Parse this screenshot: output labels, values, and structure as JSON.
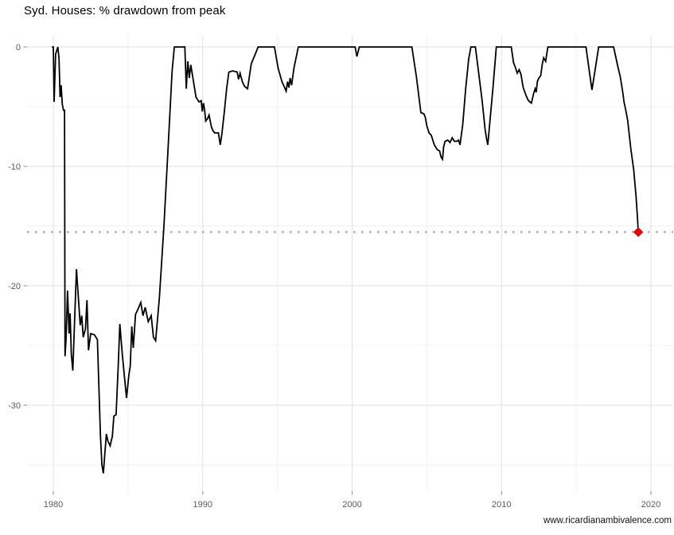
{
  "page": {
    "title": "Syd. Houses: % drawdown from peak",
    "watermark": "www.ricardianambivalence.com"
  },
  "chart_data": {
    "type": "line",
    "title": "Syd. Houses: % drawdown from peak",
    "caption": "www.ricardianambivalence.com",
    "xlabel": "",
    "ylabel": "",
    "legend": "none",
    "grid": {
      "on": true,
      "major_color": "#e3e3e3",
      "minor_color": "#f0f0f0"
    },
    "tick_label_color": "#5a5a5a",
    "tick_mark_color": "#8c8c8c",
    "x_axis": {
      "lim": [
        1978.24,
        2021.49
      ],
      "ticks": [
        {
          "v": 1980,
          "label": "1980"
        },
        {
          "v": 1990,
          "label": "1990"
        },
        {
          "v": 2000,
          "label": "2000"
        },
        {
          "v": 2010,
          "label": "2010"
        },
        {
          "v": 2020,
          "label": "2020"
        }
      ],
      "minor": [
        1985,
        1995,
        2005,
        2015
      ]
    },
    "y_axis": {
      "lim": [
        -37.2,
        0.93
      ],
      "ticks": [
        {
          "v": 0,
          "label": "0"
        },
        {
          "v": -10,
          "label": "-10"
        },
        {
          "v": -20,
          "label": "-20"
        },
        {
          "v": -30,
          "label": "-30"
        }
      ],
      "minor": [
        -5,
        -15,
        -25,
        -35
      ]
    },
    "ref_line": {
      "y": -15.5,
      "style": "dotted",
      "color": "#b3b3b3"
    },
    "marker": {
      "x": 2019.15,
      "y": -15.5,
      "shape": "diamond",
      "color": "#ee0000"
    },
    "series": [
      {
        "name": "Sydney houses % drawdown from peak",
        "color": "#000000",
        "points": [
          [
            1979.9,
            0
          ],
          [
            1980.0,
            0
          ],
          [
            1980.05,
            -4.6
          ],
          [
            1980.15,
            -0.6
          ],
          [
            1980.3,
            0
          ],
          [
            1980.38,
            -1.0
          ],
          [
            1980.45,
            -4.2
          ],
          [
            1980.52,
            -3.2
          ],
          [
            1980.6,
            -4.8
          ],
          [
            1980.68,
            -5.3
          ],
          [
            1980.75,
            -5.3
          ],
          [
            1980.78,
            -25.9
          ],
          [
            1980.85,
            -24.5
          ],
          [
            1980.95,
            -20.4
          ],
          [
            1981.05,
            -24.0
          ],
          [
            1981.12,
            -22.3
          ],
          [
            1981.2,
            -25.7
          ],
          [
            1981.3,
            -27.1
          ],
          [
            1981.45,
            -21.9
          ],
          [
            1981.55,
            -18.6
          ],
          [
            1981.65,
            -20.5
          ],
          [
            1981.8,
            -23.3
          ],
          [
            1981.9,
            -22.5
          ],
          [
            1982.0,
            -24.3
          ],
          [
            1982.15,
            -23.6
          ],
          [
            1982.25,
            -21.2
          ],
          [
            1982.35,
            -25.4
          ],
          [
            1982.5,
            -24.0
          ],
          [
            1982.75,
            -24.1
          ],
          [
            1982.95,
            -24.5
          ],
          [
            1983.05,
            -28.5
          ],
          [
            1983.15,
            -32.5
          ],
          [
            1983.25,
            -35.0
          ],
          [
            1983.35,
            -35.7
          ],
          [
            1983.45,
            -34.0
          ],
          [
            1983.55,
            -32.4
          ],
          [
            1983.65,
            -33.0
          ],
          [
            1983.8,
            -33.4
          ],
          [
            1983.95,
            -32.6
          ],
          [
            1984.05,
            -30.9
          ],
          [
            1984.2,
            -30.8
          ],
          [
            1984.35,
            -26.5
          ],
          [
            1984.45,
            -23.2
          ],
          [
            1984.6,
            -25.5
          ],
          [
            1984.75,
            -27.5
          ],
          [
            1984.9,
            -29.4
          ],
          [
            1985.05,
            -27.5
          ],
          [
            1985.15,
            -26.7
          ],
          [
            1985.25,
            -23.4
          ],
          [
            1985.35,
            -25.2
          ],
          [
            1985.5,
            -22.4
          ],
          [
            1985.65,
            -22.0
          ],
          [
            1985.85,
            -21.4
          ],
          [
            1986.0,
            -22.5
          ],
          [
            1986.15,
            -21.8
          ],
          [
            1986.35,
            -23.0
          ],
          [
            1986.55,
            -22.5
          ],
          [
            1986.7,
            -24.3
          ],
          [
            1986.85,
            -24.6
          ],
          [
            1987.1,
            -21.0
          ],
          [
            1987.4,
            -15.0
          ],
          [
            1987.7,
            -8.0
          ],
          [
            1987.95,
            -2.0
          ],
          [
            1988.1,
            0
          ],
          [
            1988.8,
            0
          ],
          [
            1988.9,
            -3.5
          ],
          [
            1989.0,
            -1.2
          ],
          [
            1989.1,
            -2.6
          ],
          [
            1989.2,
            -1.5
          ],
          [
            1989.55,
            -4.2
          ],
          [
            1989.75,
            -4.6
          ],
          [
            1989.9,
            -4.5
          ],
          [
            1989.97,
            -5.4
          ],
          [
            1990.05,
            -4.7
          ],
          [
            1990.13,
            -5.3
          ],
          [
            1990.2,
            -6.2
          ],
          [
            1990.32,
            -6.0
          ],
          [
            1990.42,
            -5.7
          ],
          [
            1990.58,
            -6.7
          ],
          [
            1990.68,
            -7.0
          ],
          [
            1990.8,
            -7.2
          ],
          [
            1991.05,
            -7.2
          ],
          [
            1991.17,
            -8.2
          ],
          [
            1991.28,
            -7.3
          ],
          [
            1991.44,
            -5.5
          ],
          [
            1991.6,
            -3.5
          ],
          [
            1991.75,
            -2.1
          ],
          [
            1992.0,
            -2.0
          ],
          [
            1992.3,
            -2.1
          ],
          [
            1992.4,
            -2.7
          ],
          [
            1992.5,
            -2.2
          ],
          [
            1992.65,
            -2.9
          ],
          [
            1992.8,
            -3.3
          ],
          [
            1993.0,
            -3.5
          ],
          [
            1993.25,
            -1.4
          ],
          [
            1993.55,
            -0.5
          ],
          [
            1993.7,
            0
          ],
          [
            1994.8,
            0
          ],
          [
            1995.05,
            -1.8
          ],
          [
            1995.3,
            -2.9
          ],
          [
            1995.48,
            -3.4
          ],
          [
            1995.58,
            -3.7
          ],
          [
            1995.68,
            -2.9
          ],
          [
            1995.77,
            -3.4
          ],
          [
            1995.85,
            -2.6
          ],
          [
            1995.95,
            -3.2
          ],
          [
            1996.1,
            -1.8
          ],
          [
            1996.4,
            0
          ],
          [
            2000.2,
            0
          ],
          [
            2000.32,
            -0.8
          ],
          [
            2000.48,
            0
          ],
          [
            2004.0,
            0
          ],
          [
            2004.3,
            -2.5
          ],
          [
            2004.6,
            -5.5
          ],
          [
            2004.8,
            -5.6
          ],
          [
            2004.9,
            -5.9
          ],
          [
            2005.0,
            -6.6
          ],
          [
            2005.15,
            -7.2
          ],
          [
            2005.3,
            -7.4
          ],
          [
            2005.5,
            -8.2
          ],
          [
            2005.7,
            -8.6
          ],
          [
            2005.85,
            -8.7
          ],
          [
            2005.95,
            -9.2
          ],
          [
            2006.05,
            -9.4
          ],
          [
            2006.12,
            -8.4
          ],
          [
            2006.22,
            -7.9
          ],
          [
            2006.4,
            -7.8
          ],
          [
            2006.55,
            -8.0
          ],
          [
            2006.7,
            -7.6
          ],
          [
            2006.85,
            -7.9
          ],
          [
            2007.0,
            -7.9
          ],
          [
            2007.12,
            -7.8
          ],
          [
            2007.22,
            -8.2
          ],
          [
            2007.4,
            -6.5
          ],
          [
            2007.6,
            -3.5
          ],
          [
            2007.8,
            -1.0
          ],
          [
            2007.95,
            0
          ],
          [
            2008.25,
            0
          ],
          [
            2008.45,
            -2.0
          ],
          [
            2008.7,
            -4.5
          ],
          [
            2008.9,
            -6.9
          ],
          [
            2009.0,
            -7.7
          ],
          [
            2009.08,
            -8.2
          ],
          [
            2009.2,
            -6.5
          ],
          [
            2009.42,
            -3.5
          ],
          [
            2009.65,
            0
          ],
          [
            2010.65,
            0
          ],
          [
            2010.8,
            -1.3
          ],
          [
            2010.92,
            -1.7
          ],
          [
            2011.05,
            -2.2
          ],
          [
            2011.18,
            -1.9
          ],
          [
            2011.3,
            -2.3
          ],
          [
            2011.45,
            -3.4
          ],
          [
            2011.65,
            -4.1
          ],
          [
            2011.8,
            -4.5
          ],
          [
            2012.0,
            -4.7
          ],
          [
            2012.15,
            -3.9
          ],
          [
            2012.25,
            -3.5
          ],
          [
            2012.32,
            -3.8
          ],
          [
            2012.4,
            -2.9
          ],
          [
            2012.5,
            -2.6
          ],
          [
            2012.62,
            -2.4
          ],
          [
            2012.72,
            -1.5
          ],
          [
            2012.82,
            -0.9
          ],
          [
            2012.95,
            -1.2
          ],
          [
            2013.1,
            0
          ],
          [
            2015.65,
            0
          ],
          [
            2015.85,
            -1.8
          ],
          [
            2016.05,
            -3.6
          ],
          [
            2016.3,
            -1.6
          ],
          [
            2016.5,
            0
          ],
          [
            2017.5,
            0
          ],
          [
            2017.78,
            -1.6
          ],
          [
            2017.95,
            -2.5
          ],
          [
            2018.1,
            -3.7
          ],
          [
            2018.2,
            -4.6
          ],
          [
            2018.35,
            -5.5
          ],
          [
            2018.45,
            -6.2
          ],
          [
            2018.65,
            -8.5
          ],
          [
            2018.85,
            -10.3
          ],
          [
            2019.0,
            -12.5
          ],
          [
            2019.1,
            -14.3
          ],
          [
            2019.15,
            -15.5
          ]
        ]
      }
    ]
  }
}
